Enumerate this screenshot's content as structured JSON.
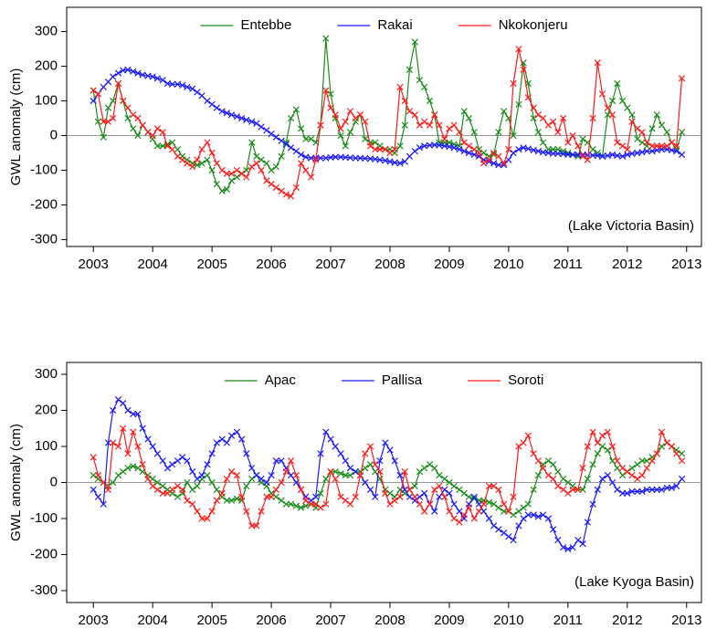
{
  "chart_data": [
    {
      "type": "line",
      "ylabel": "GWL anomaly (cm)",
      "annotation": "(Lake Victoria Basin)",
      "legend": "upper center",
      "marker": "x",
      "reference_line": 0,
      "xlim": [
        2002.55,
        2013.25
      ],
      "xticks": [
        2003,
        2004,
        2005,
        2006,
        2007,
        2008,
        2009,
        2010,
        2011,
        2012,
        2013
      ],
      "ylim": [
        -320,
        370
      ],
      "yticks": [
        -300,
        -200,
        -100,
        0,
        100,
        200,
        300
      ],
      "x": [
        2003,
        2003.08,
        2003.17,
        2003.25,
        2003.33,
        2003.42,
        2003.5,
        2003.58,
        2003.67,
        2003.75,
        2003.83,
        2003.92,
        2004,
        2004.08,
        2004.17,
        2004.25,
        2004.33,
        2004.42,
        2004.5,
        2004.58,
        2004.67,
        2004.75,
        2004.83,
        2004.92,
        2005,
        2005.08,
        2005.17,
        2005.25,
        2005.33,
        2005.42,
        2005.5,
        2005.58,
        2005.67,
        2005.75,
        2005.83,
        2005.92,
        2006,
        2006.08,
        2006.17,
        2006.25,
        2006.33,
        2006.42,
        2006.5,
        2006.58,
        2006.67,
        2006.75,
        2006.83,
        2006.92,
        2007,
        2007.08,
        2007.17,
        2007.25,
        2007.33,
        2007.42,
        2007.5,
        2007.58,
        2007.67,
        2007.75,
        2007.83,
        2007.92,
        2008,
        2008.08,
        2008.17,
        2008.25,
        2008.33,
        2008.42,
        2008.5,
        2008.58,
        2008.67,
        2008.75,
        2008.83,
        2008.92,
        2009,
        2009.08,
        2009.17,
        2009.25,
        2009.33,
        2009.42,
        2009.5,
        2009.58,
        2009.67,
        2009.75,
        2009.83,
        2009.92,
        2010,
        2010.08,
        2010.17,
        2010.25,
        2010.33,
        2010.42,
        2010.5,
        2010.58,
        2010.67,
        2010.75,
        2010.83,
        2010.92,
        2011,
        2011.08,
        2011.17,
        2011.25,
        2011.33,
        2011.42,
        2011.5,
        2011.58,
        2011.67,
        2011.75,
        2011.83,
        2011.92,
        2012,
        2012.08,
        2012.17,
        2012.25,
        2012.33,
        2012.42,
        2012.5,
        2012.58,
        2012.67,
        2012.75,
        2012.83,
        2012.92
      ],
      "series": [
        {
          "name": "Entebbe",
          "color": "#1a8c1a",
          "values": [
            130,
            40,
            -5,
            80,
            100,
            150,
            100,
            50,
            20,
            0,
            30,
            10,
            -10,
            -30,
            -30,
            -25,
            -20,
            -40,
            -60,
            -70,
            -80,
            -85,
            -80,
            -70,
            -100,
            -140,
            -160,
            -155,
            -130,
            -120,
            -110,
            -100,
            -20,
            -60,
            -70,
            -80,
            -100,
            -90,
            -60,
            -20,
            50,
            75,
            20,
            -10,
            -10,
            -20,
            30,
            280,
            120,
            50,
            0,
            -30,
            10,
            40,
            60,
            -10,
            -20,
            -20,
            -30,
            -40,
            -40,
            -50,
            -30,
            30,
            190,
            270,
            160,
            140,
            100,
            60,
            -20,
            -20,
            -20,
            -25,
            -30,
            70,
            50,
            10,
            -40,
            -50,
            -60,
            -55,
            10,
            70,
            50,
            0,
            90,
            210,
            150,
            50,
            10,
            -20,
            -40,
            -40,
            -40,
            -45,
            -50,
            -55,
            -60,
            -10,
            -20,
            -40,
            -50,
            -60,
            60,
            100,
            150,
            100,
            80,
            60,
            -10,
            -20,
            -30,
            20,
            60,
            30,
            10,
            -20,
            -40,
            10
          ]
        },
        {
          "name": "Rakai",
          "color": "#1a1aff",
          "values": [
            100,
            120,
            140,
            155,
            170,
            180,
            188,
            190,
            185,
            180,
            175,
            172,
            170,
            165,
            160,
            150,
            148,
            148,
            145,
            140,
            135,
            125,
            115,
            100,
            90,
            80,
            70,
            65,
            60,
            55,
            50,
            45,
            40,
            35,
            25,
            15,
            5,
            -5,
            -15,
            -25,
            -35,
            -45,
            -55,
            -62,
            -65,
            -65,
            -65,
            -65,
            -63,
            -62,
            -62,
            -63,
            -64,
            -65,
            -65,
            -66,
            -67,
            -68,
            -70,
            -72,
            -75,
            -78,
            -80,
            -75,
            -60,
            -45,
            -35,
            -30,
            -28,
            -27,
            -28,
            -30,
            -32,
            -35,
            -40,
            -45,
            -50,
            -55,
            -60,
            -70,
            -75,
            -80,
            -85,
            -85,
            -70,
            -50,
            -40,
            -35,
            -38,
            -42,
            -45,
            -48,
            -50,
            -52,
            -52,
            -53,
            -55,
            -55,
            -55,
            -55,
            -56,
            -57,
            -58,
            -60,
            -58,
            -55,
            -58,
            -60,
            -55,
            -52,
            -50,
            -48,
            -45,
            -45,
            -42,
            -40,
            -40,
            -42,
            -45,
            -55
          ]
        },
        {
          "name": "Nkokonjeru",
          "color": "#ff1a1a",
          "values": [
            130,
            120,
            40,
            40,
            50,
            150,
            100,
            80,
            60,
            50,
            30,
            10,
            0,
            20,
            10,
            -30,
            -40,
            -60,
            -70,
            -80,
            -90,
            -70,
            -40,
            -20,
            -50,
            -80,
            -100,
            -110,
            -110,
            -100,
            -110,
            -120,
            -90,
            -80,
            -100,
            -130,
            -140,
            -150,
            -160,
            -170,
            -175,
            -150,
            -80,
            -100,
            -120,
            -70,
            30,
            130,
            80,
            60,
            20,
            40,
            70,
            50,
            60,
            40,
            -30,
            -40,
            -40,
            -40,
            -50,
            -40,
            140,
            100,
            70,
            60,
            30,
            40,
            30,
            60,
            30,
            -10,
            20,
            30,
            10,
            -20,
            -30,
            -40,
            -50,
            -80,
            -70,
            -50,
            -60,
            -80,
            -40,
            150,
            250,
            190,
            110,
            80,
            60,
            50,
            30,
            40,
            10,
            50,
            -20,
            0,
            -30,
            -60,
            -70,
            50,
            210,
            120,
            80,
            60,
            -20,
            -30,
            -40,
            40,
            20,
            10,
            -20,
            -30,
            -30,
            -30,
            -30,
            -20,
            -30,
            165
          ]
        }
      ]
    },
    {
      "type": "line",
      "ylabel": "GWL anomaly (cm)",
      "annotation": "(Lake Kyoga Basin)",
      "legend": "upper center",
      "marker": "x",
      "reference_line": 0,
      "xlim": [
        2002.55,
        2013.25
      ],
      "xticks": [
        2003,
        2004,
        2005,
        2006,
        2007,
        2008,
        2009,
        2010,
        2011,
        2012,
        2013
      ],
      "ylim": [
        -333,
        333
      ],
      "yticks": [
        -300,
        -200,
        -100,
        0,
        100,
        200,
        300
      ],
      "x": [
        2003,
        2003.08,
        2003.17,
        2003.25,
        2003.33,
        2003.42,
        2003.5,
        2003.58,
        2003.67,
        2003.75,
        2003.83,
        2003.92,
        2004,
        2004.08,
        2004.17,
        2004.25,
        2004.33,
        2004.42,
        2004.5,
        2004.58,
        2004.67,
        2004.75,
        2004.83,
        2004.92,
        2005,
        2005.08,
        2005.17,
        2005.25,
        2005.33,
        2005.42,
        2005.5,
        2005.58,
        2005.67,
        2005.75,
        2005.83,
        2005.92,
        2006,
        2006.08,
        2006.17,
        2006.25,
        2006.33,
        2006.42,
        2006.5,
        2006.58,
        2006.67,
        2006.75,
        2006.83,
        2006.92,
        2007,
        2007.08,
        2007.17,
        2007.25,
        2007.33,
        2007.42,
        2007.5,
        2007.58,
        2007.67,
        2007.75,
        2007.83,
        2007.92,
        2008,
        2008.08,
        2008.17,
        2008.25,
        2008.33,
        2008.42,
        2008.5,
        2008.58,
        2008.67,
        2008.75,
        2008.83,
        2008.92,
        2009,
        2009.08,
        2009.17,
        2009.25,
        2009.33,
        2009.42,
        2009.5,
        2009.58,
        2009.67,
        2009.75,
        2009.83,
        2009.92,
        2010,
        2010.08,
        2010.17,
        2010.25,
        2010.33,
        2010.42,
        2010.5,
        2010.58,
        2010.67,
        2010.75,
        2010.83,
        2010.92,
        2011,
        2011.08,
        2011.17,
        2011.25,
        2011.33,
        2011.42,
        2011.5,
        2011.58,
        2011.67,
        2011.75,
        2011.83,
        2011.92,
        2012,
        2012.08,
        2012.17,
        2012.25,
        2012.33,
        2012.42,
        2012.5,
        2012.58,
        2012.67,
        2012.75,
        2012.83,
        2012.92
      ],
      "series": [
        {
          "name": "Apac",
          "color": "#1a8c1a",
          "values": [
            20,
            10,
            0,
            -10,
            0,
            20,
            30,
            40,
            45,
            40,
            30,
            20,
            10,
            0,
            -10,
            -20,
            -30,
            -40,
            -30,
            0,
            -20,
            -10,
            10,
            20,
            0,
            -20,
            -40,
            -50,
            -50,
            -45,
            -50,
            -10,
            10,
            20,
            0,
            -10,
            -30,
            -40,
            -50,
            -60,
            -60,
            -65,
            -70,
            -65,
            -60,
            -70,
            -30,
            10,
            30,
            30,
            25,
            20,
            20,
            30,
            30,
            40,
            50,
            30,
            10,
            -20,
            -30,
            -40,
            -20,
            -30,
            -20,
            -10,
            30,
            40,
            50,
            40,
            20,
            10,
            0,
            -10,
            -20,
            -30,
            -40,
            -45,
            -50,
            -50,
            -55,
            -60,
            -70,
            -80,
            -80,
            -90,
            -80,
            -70,
            -60,
            -20,
            20,
            50,
            60,
            50,
            30,
            10,
            0,
            -10,
            -20,
            -20,
            10,
            50,
            80,
            100,
            90,
            60,
            40,
            20,
            30,
            40,
            50,
            60,
            60,
            70,
            80,
            100,
            110,
            100,
            90,
            80
          ]
        },
        {
          "name": "Pallisa",
          "color": "#1a1aff",
          "values": [
            -20,
            -40,
            -60,
            110,
            200,
            230,
            220,
            200,
            190,
            190,
            150,
            120,
            100,
            80,
            60,
            40,
            50,
            60,
            70,
            60,
            30,
            10,
            20,
            50,
            80,
            110,
            120,
            110,
            130,
            140,
            120,
            80,
            40,
            20,
            10,
            0,
            20,
            60,
            60,
            40,
            20,
            0,
            -20,
            -40,
            -50,
            -40,
            80,
            140,
            120,
            100,
            80,
            60,
            40,
            30,
            20,
            0,
            -20,
            -40,
            60,
            110,
            90,
            60,
            20,
            -20,
            -40,
            -50,
            -40,
            -30,
            -60,
            -80,
            -40,
            -20,
            -30,
            -60,
            -80,
            -100,
            -60,
            -40,
            -60,
            -80,
            -100,
            -120,
            -130,
            -140,
            -150,
            -160,
            -120,
            -100,
            -90,
            -90,
            -95,
            -90,
            -100,
            -130,
            -160,
            -180,
            -185,
            -180,
            -160,
            -170,
            -110,
            -60,
            -20,
            10,
            20,
            0,
            -20,
            -30,
            -30,
            -25,
            -25,
            -25,
            -20,
            -20,
            -20,
            -20,
            -15,
            -15,
            -10,
            10
          ]
        },
        {
          "name": "Soroti",
          "color": "#ff1a1a",
          "values": [
            70,
            20,
            0,
            -20,
            110,
            100,
            150,
            80,
            140,
            100,
            50,
            10,
            -10,
            -20,
            -30,
            -30,
            -20,
            -10,
            -20,
            -50,
            -60,
            -80,
            -100,
            -100,
            -80,
            -50,
            -30,
            10,
            30,
            20,
            -40,
            -80,
            -120,
            -120,
            -80,
            -40,
            -40,
            -20,
            0,
            30,
            60,
            20,
            -20,
            -50,
            -60,
            -60,
            -70,
            -60,
            30,
            10,
            -40,
            -50,
            -60,
            -40,
            20,
            80,
            100,
            50,
            30,
            -30,
            -60,
            -50,
            -40,
            30,
            -20,
            -40,
            -60,
            -80,
            -60,
            -20,
            -10,
            -40,
            -80,
            -100,
            -110,
            -90,
            -70,
            -100,
            -80,
            -60,
            -10,
            -10,
            -20,
            -60,
            -80,
            -40,
            100,
            110,
            130,
            80,
            60,
            40,
            20,
            10,
            -10,
            -20,
            -30,
            -20,
            -20,
            40,
            100,
            140,
            110,
            130,
            140,
            100,
            60,
            40,
            30,
            20,
            10,
            20,
            40,
            60,
            80,
            140,
            110,
            100,
            80,
            60
          ]
        }
      ]
    }
  ]
}
